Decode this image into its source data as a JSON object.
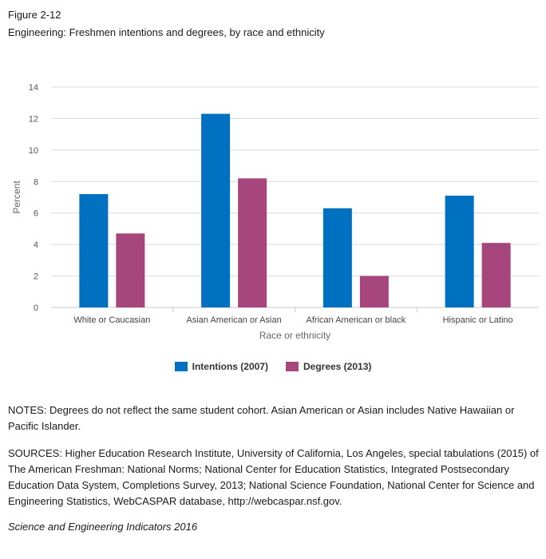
{
  "figure": {
    "label": "Figure 2-12",
    "title": "Engineering: Freshmen intentions and degrees, by race and ethnicity"
  },
  "chart_data": {
    "type": "bar",
    "categories": [
      "White or Caucasian",
      "Asian American or Asian",
      "African American or black",
      "Hispanic or Latino"
    ],
    "series": [
      {
        "name": "Intentions (2007)",
        "values": [
          7.2,
          12.3,
          6.3,
          7.1
        ],
        "color": "#0070c0"
      },
      {
        "name": "Degrees (2013)",
        "values": [
          4.7,
          8.2,
          2.0,
          4.1
        ],
        "color": "#a6467d"
      }
    ],
    "xlabel": "Race or ethnicity",
    "ylabel": "Percent",
    "ylim": [
      0,
      14
    ],
    "yticks": [
      0,
      2,
      4,
      6,
      8,
      10,
      12,
      14
    ],
    "grid": true,
    "legend_position": "bottom"
  },
  "notes": "NOTES: Degrees do not reflect the same student cohort. Asian American or Asian includes Native Hawaiian or Pacific Islander.",
  "sources": "SOURCES: Higher Education Research Institute, University of California, Los Angeles, special tabulations (2015) of The American Freshman: National Norms; National Center for Education Statistics, Integrated Postsecondary Education Data System, Completions Survey, 2013; National Science Foundation, National Center for Science and Engineering Statistics, WebCASPAR database, http://webcaspar.nsf.gov.",
  "credit": "Science and Engineering Indicators 2016"
}
